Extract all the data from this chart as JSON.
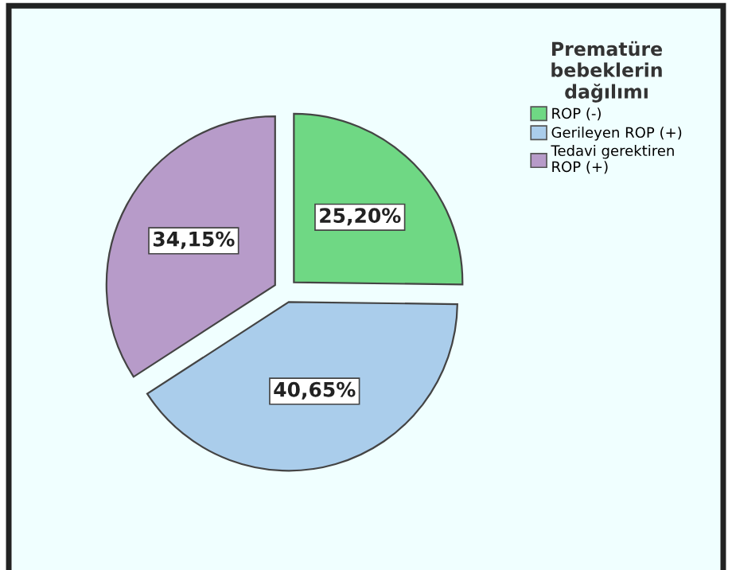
{
  "chart_data": {
    "type": "pie",
    "legend_title": "Prematüre bebeklerin dağılımı",
    "categories": [
      "ROP (-)",
      "Gerileyen ROP (+)",
      "Tedavi gerektiren ROP (+)"
    ],
    "values": [
      25.2,
      40.65,
      34.15
    ],
    "value_labels": [
      "25,20%",
      "40,65%",
      "34,15%"
    ],
    "colors": [
      "#6fd884",
      "#aacdeb",
      "#b79bc9"
    ],
    "legend": "top right"
  }
}
